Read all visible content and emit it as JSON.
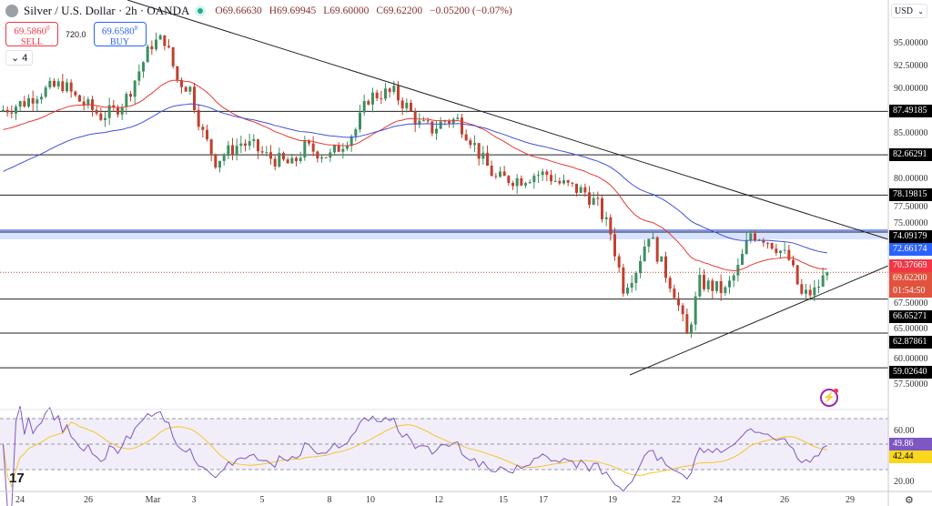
{
  "header": {
    "symbol": "Silver / U.S. Dollar · 2h · OANDA",
    "open": "O69.66630",
    "high": "H69.69945",
    "low": "L69.60000",
    "close": "C69.62200",
    "change": "−0.05200 (−0.07%)"
  },
  "trade": {
    "sell_price": "69.5860",
    "sell_sup": "0",
    "sell_label": "SELL",
    "spread": "720.0",
    "buy_price": "69.6580",
    "buy_sup": "0",
    "buy_label": "BUY"
  },
  "indicators_toggle": "⌄ 4",
  "currency": "USD",
  "colors": {
    "up": "#3f8f62",
    "down": "#c0412f",
    "ema_fast": "#e53935",
    "ema_slow": "#3f51d8",
    "rsi": "#7e57c2",
    "rsi_ma": "#f4c430",
    "level_band": "#2962ff"
  },
  "chart_data": [
    {
      "type": "candlestick",
      "title": "Silver / U.S. Dollar · 2h · OANDA",
      "ylim": [
        56,
        97.5
      ],
      "y_ticks": [
        "95.00000",
        "92.50000",
        "90.00000",
        "85.00000",
        "80.00000",
        "77.50000",
        "75.00000",
        "67.50000",
        "65.00000",
        "60.00000",
        "57.50000"
      ],
      "x_ticks": [
        "24",
        "26",
        "Mar",
        "3",
        "5",
        "8",
        "10",
        "12",
        "15",
        "17",
        "19",
        "22",
        "24",
        "26",
        "29"
      ],
      "close_samples": [
        87.5,
        88,
        88.5,
        89.5,
        90,
        90.5,
        89,
        88,
        87,
        87.5,
        89,
        92,
        95,
        95.5,
        91,
        90,
        85,
        82,
        83,
        84,
        83.5,
        82.5,
        82,
        81.5,
        83.5,
        83,
        82.5,
        84,
        85.5,
        89,
        89.5,
        89.5,
        88,
        86,
        85.5,
        86.5,
        86.5,
        84.5,
        82,
        80,
        80,
        80,
        80.5,
        80.5,
        79.5,
        79,
        78.5,
        77,
        74,
        68,
        70,
        74,
        70.5,
        67.5,
        62.5,
        68.5,
        68,
        67.5,
        70,
        74,
        73.5,
        72.5,
        71,
        67,
        67.5,
        69.622
      ],
      "horizontal_levels": [
        {
          "value": 87.49185,
          "label": "87.49185"
        },
        {
          "value": 82.66291,
          "label": "82.66291"
        },
        {
          "value": 78.19815,
          "label": "78.19815"
        },
        {
          "value": 74.09179,
          "label": "74.09179"
        },
        {
          "value": 66.65271,
          "label": "66.65271"
        },
        {
          "value": 62.87861,
          "label": "62.87861"
        },
        {
          "value": 59.0264,
          "label": "59.02640"
        }
      ],
      "moving_averages": [
        {
          "color": "blue",
          "last": "72.66174"
        },
        {
          "color": "red",
          "last": "70.37669"
        }
      ],
      "last_price": "69.62200",
      "countdown": "01:54:50",
      "trendlines": [
        "descending resistance",
        "ascending support"
      ]
    },
    {
      "type": "line",
      "y_ticks": [
        "60.00",
        "20.00"
      ],
      "bands": [
        70,
        50,
        30
      ],
      "series": [
        {
          "color": "purple",
          "last": "49.86"
        },
        {
          "color": "yellow",
          "last": "42.44"
        }
      ]
    }
  ]
}
